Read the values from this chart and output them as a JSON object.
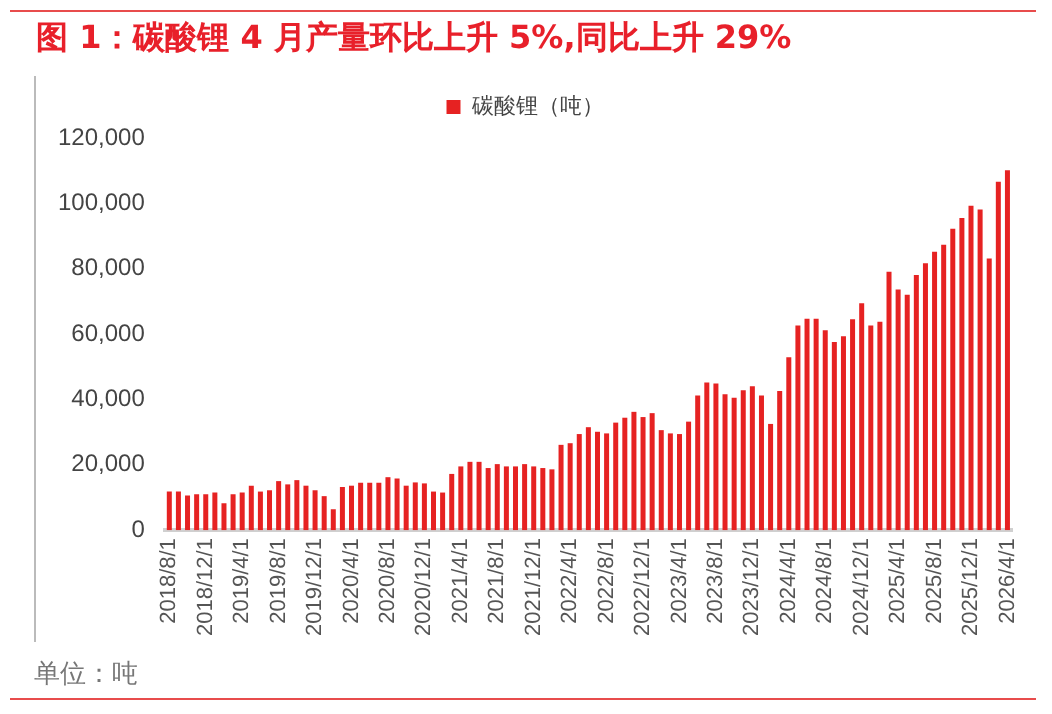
{
  "chart_data": {
    "type": "bar",
    "title": "图 1：碳酸锂 4 月产量环比上升 5%,同比上升 29%",
    "annotations": [
      "单位：吨"
    ],
    "categories": [
      "2018/8/1",
      null,
      null,
      null,
      "2018/12/1",
      null,
      null,
      null,
      "2019/4/1",
      null,
      null,
      null,
      "2019/8/1",
      null,
      null,
      null,
      "2019/12/1",
      null,
      null,
      null,
      "2020/4/1",
      null,
      null,
      null,
      "2020/8/1",
      null,
      null,
      null,
      "2020/12/1",
      null,
      null,
      null,
      "2021/4/1",
      null,
      null,
      null,
      "2021/8/1",
      null,
      null,
      null,
      "2021/12/1",
      null,
      null,
      null,
      "2022/4/1",
      null,
      null,
      null,
      "2022/8/1",
      null,
      null,
      null,
      "2022/12/1",
      null,
      null,
      null,
      "2023/4/1",
      null,
      null,
      null,
      "2023/8/1",
      null,
      null,
      null,
      "2023/12/1",
      null,
      null,
      null,
      "2024/4/1",
      null,
      null,
      null,
      "2024/8/1",
      null,
      null,
      null,
      "2024/12/1",
      null,
      null,
      null,
      "2025/4/1",
      null,
      null,
      null,
      "2025/8/1",
      null,
      null,
      null,
      "2025/12/1",
      null,
      null,
      null,
      "2026/4/1"
    ],
    "series": [
      {
        "name": "碳酸锂（吨）",
        "color": "#e62222",
        "values": [
          11800,
          11800,
          10600,
          11000,
          11000,
          11500,
          8200,
          11000,
          11500,
          13600,
          11800,
          12200,
          15000,
          14000,
          15300,
          13600,
          12200,
          10400,
          6400,
          13200,
          13600,
          14500,
          14500,
          14500,
          16200,
          15800,
          13600,
          14600,
          14300,
          11800,
          11500,
          17200,
          19500,
          20900,
          20900,
          19000,
          20200,
          19500,
          19500,
          20200,
          19500,
          19000,
          18600,
          26100,
          26600,
          29400,
          31500,
          30100,
          29600,
          32900,
          34400,
          36200,
          34600,
          35800,
          30600,
          29600,
          29400,
          33200,
          41200,
          45200,
          44900,
          41600,
          40500,
          42800,
          44000,
          41200,
          32500,
          42600,
          52900,
          62600,
          64700,
          64700,
          61200,
          57600,
          59300,
          64500,
          69400,
          62600,
          63800,
          79100,
          73600,
          72000,
          78100,
          81700,
          85200,
          87300,
          92200,
          95500,
          99300,
          98100,
          83100,
          106600,
          110100
        ]
      }
    ],
    "ylim": [
      0,
      120000
    ],
    "yticks": [
      0,
      {
        "value": 20000,
        "label": "20,000"
      },
      {
        "value": 40000,
        "label": "40,000"
      },
      {
        "value": 60000,
        "label": "60,000"
      },
      {
        "value": 80000,
        "label": "80,000"
      },
      {
        "value": 100000,
        "label": "100,000"
      },
      {
        "value": 120000,
        "label": "120,000"
      }
    ],
    "grid": false,
    "legend": "top"
  }
}
